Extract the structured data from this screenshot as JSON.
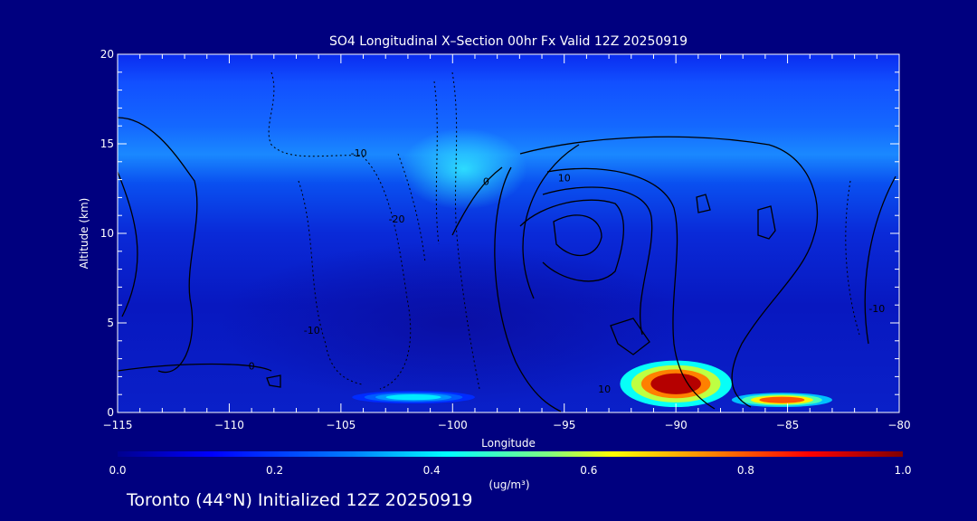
{
  "chart_data": {
    "type": "heatmap",
    "title": "SO4 Longitudinal X–Section 00hr  Fx Valid 12Z 20250919",
    "xlabel": "Longitude",
    "ylabel": "Altitude (km)",
    "xlim": [
      -115,
      -80
    ],
    "ylim": [
      0,
      20
    ],
    "xticks": [
      -115,
      -110,
      -105,
      -100,
      -95,
      -90,
      -85,
      -80
    ],
    "yticks": [
      0,
      5,
      10,
      15,
      20
    ],
    "colorbar": {
      "label": "(ug/m³)",
      "range": [
        0.0,
        1.0
      ],
      "ticks": [
        "0.0",
        "0.2",
        "0.4",
        "0.6",
        "0.8",
        "1.0"
      ],
      "colors": [
        "#00008f",
        "#0000ff",
        "#0080ff",
        "#00ffff",
        "#80ff80",
        "#ffff00",
        "#ff8000",
        "#ff0000",
        "#800000"
      ]
    },
    "contours": {
      "labels": [
        {
          "text": "-10",
          "x": -104.2,
          "y": 14.3
        },
        {
          "text": "-20",
          "x": -102.5,
          "y": 10.6
        },
        {
          "text": "-10",
          "x": -106.3,
          "y": 4.4
        },
        {
          "text": "0",
          "x": -109.0,
          "y": 2.4
        },
        {
          "text": "0",
          "x": -98.5,
          "y": 12.7
        },
        {
          "text": "10",
          "x": -95.0,
          "y": 12.9
        },
        {
          "text": "10",
          "x": -93.2,
          "y": 1.1
        },
        {
          "text": "-10",
          "x": -81.0,
          "y": 5.6
        }
      ]
    },
    "highlights": [
      {
        "lon_min": -92.5,
        "lon_max": -87.5,
        "alt_min": 0.3,
        "alt_max": 2.9,
        "value": 0.95
      },
      {
        "lon_min": -87.5,
        "lon_max": -83.0,
        "alt_min": 0.3,
        "alt_max": 1.1,
        "value": 0.8
      },
      {
        "lon_min": -104.5,
        "lon_max": -99.0,
        "alt_min": 0.5,
        "alt_max": 1.2,
        "value": 0.4
      }
    ]
  },
  "footer": {
    "text": "Toronto (44°N) Initialized 12Z 20250919"
  }
}
